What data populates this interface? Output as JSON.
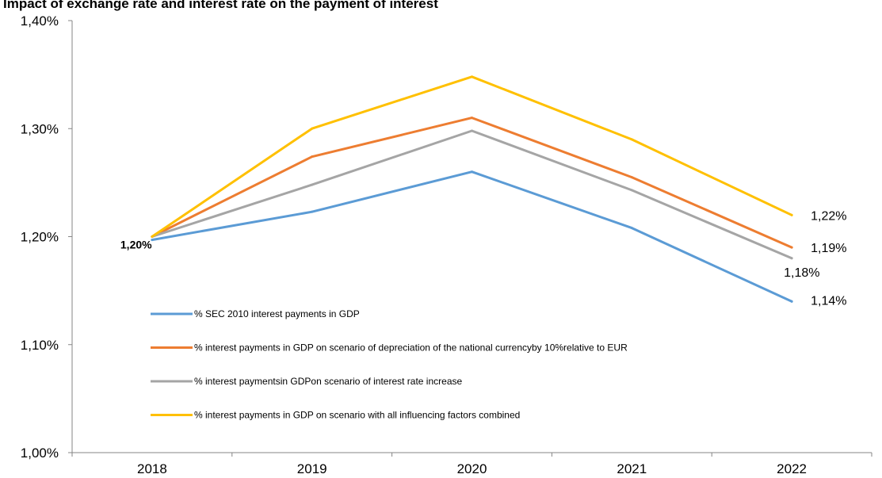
{
  "chart_data": {
    "type": "line",
    "title": "Impact of exchange rate and interest rate on the payment of interest",
    "xlabel": "",
    "ylabel": "",
    "categories": [
      "2018",
      "2019",
      "2020",
      "2021",
      "2022"
    ],
    "ylim": [
      1.0,
      1.4
    ],
    "yticks": [
      "1,00%",
      "1,10%",
      "1,20%",
      "1,30%",
      "1,40%"
    ],
    "ytick_values": [
      1.0,
      1.1,
      1.2,
      1.3,
      1.4
    ],
    "grid": false,
    "legend_placement": "lower-left inside",
    "series": [
      {
        "name": "% SEC 2010 interest payments in GDP",
        "color": "#5B9BD5",
        "values": [
          1.197,
          1.223,
          1.26,
          1.208,
          1.14
        ]
      },
      {
        "name": "% interest payments in GDP on scenario of depreciation of the national currencyby 10%relative to EUR",
        "color": "#ED7D31",
        "values": [
          1.2,
          1.274,
          1.31,
          1.255,
          1.19
        ]
      },
      {
        "name": "% interest paymentsin GDPon scenario of interest rate increase",
        "color": "#A5A5A5",
        "values": [
          1.2,
          1.248,
          1.298,
          1.243,
          1.18
        ]
      },
      {
        "name": "% interest payments in GDP on scenario with all influencing factors combined",
        "color": "#FFC000",
        "values": [
          1.2,
          1.3,
          1.348,
          1.29,
          1.22
        ]
      }
    ],
    "data_labels": [
      {
        "series": 0,
        "point": 0,
        "text": "1,20%"
      },
      {
        "series": 3,
        "point": 4,
        "text": "1,22%"
      },
      {
        "series": 1,
        "point": 4,
        "text": "1,19%"
      },
      {
        "series": 2,
        "point": 4,
        "text": "1,18%"
      },
      {
        "series": 0,
        "point": 4,
        "text": "1,14%"
      }
    ]
  }
}
